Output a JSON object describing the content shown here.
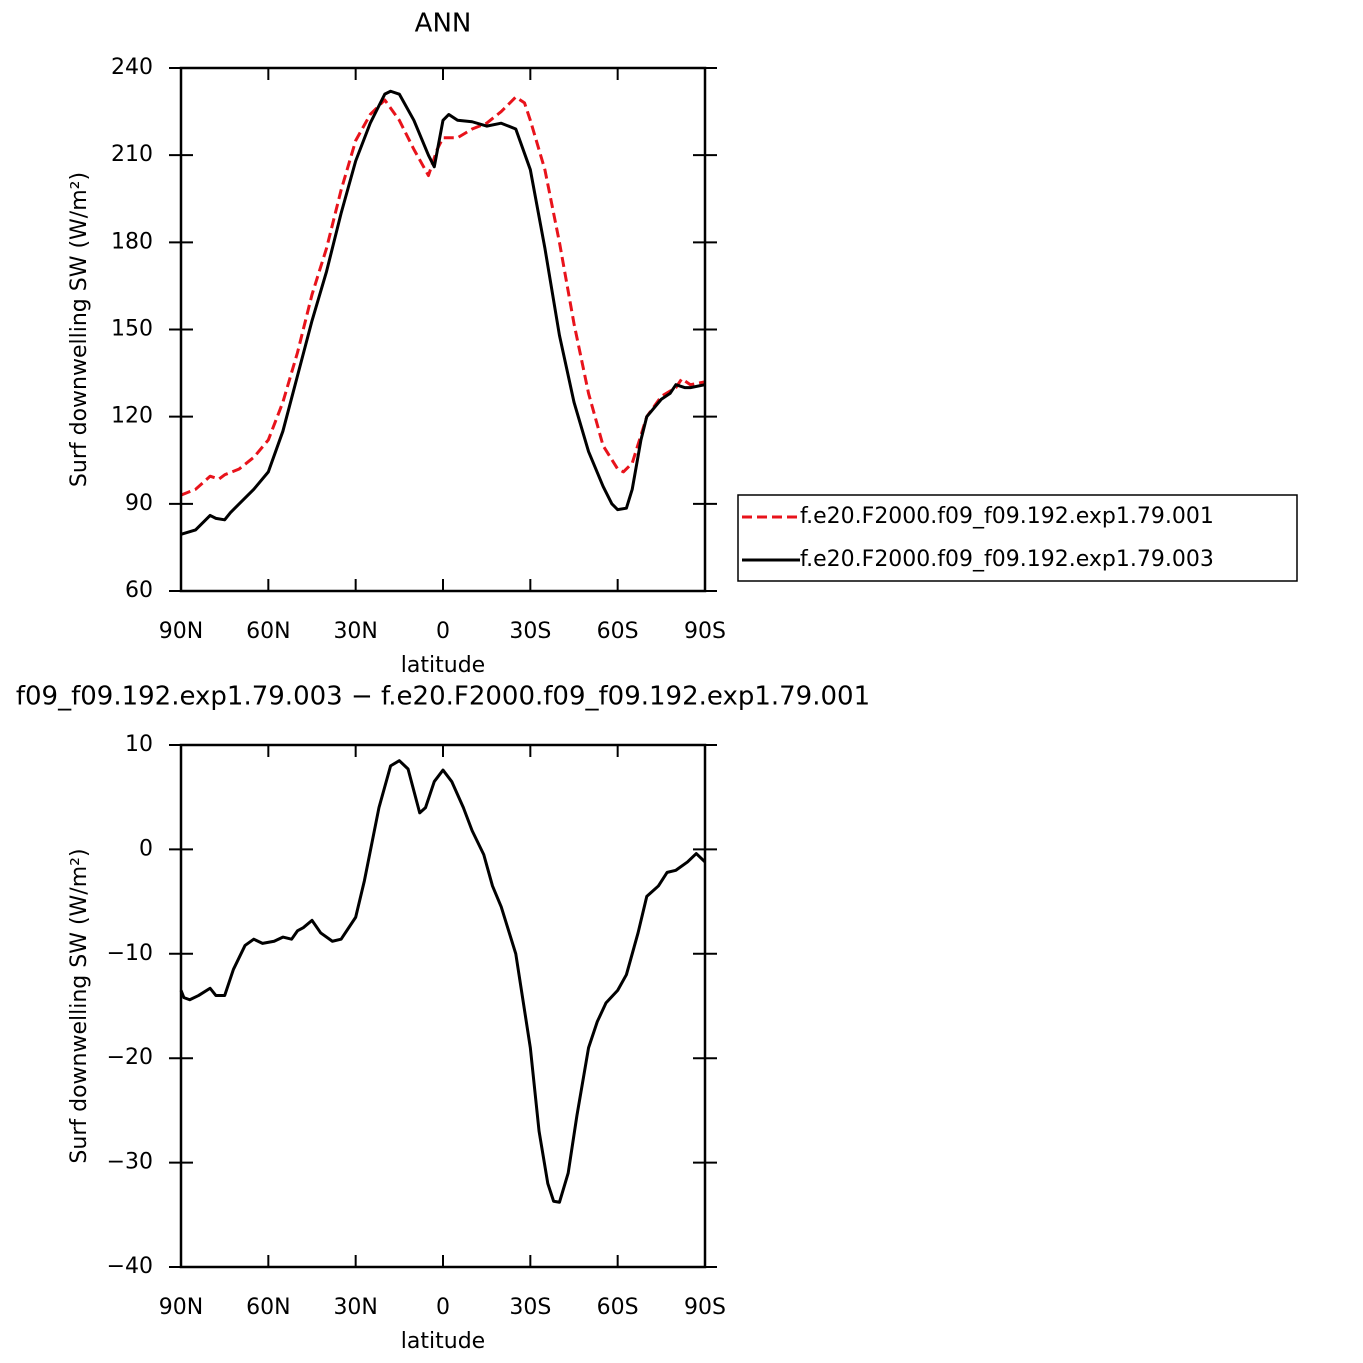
{
  "chart_data": [
    {
      "type": "line",
      "title": "ANN",
      "xlabel": "latitude",
      "ylabel": "Surf downwelling SW (W/m²)",
      "xlim": [
        90,
        -90
      ],
      "ylim": [
        60,
        240
      ],
      "xticks": [
        {
          "value": 90,
          "label": "90N"
        },
        {
          "value": 60,
          "label": "60N"
        },
        {
          "value": 30,
          "label": "30N"
        },
        0,
        {
          "value": -30,
          "label": "30S"
        },
        {
          "value": -60,
          "label": "60S"
        },
        {
          "value": -90,
          "label": "90S"
        }
      ],
      "yticks": [
        60,
        90,
        120,
        150,
        180,
        210,
        240
      ],
      "legend": "right",
      "series": [
        {
          "name": "f.e20.F2000.f09_f09.192.exp1.79.001",
          "color": "#e8131b",
          "dash": true,
          "x": [
            90,
            85,
            80,
            77,
            75,
            70,
            65,
            60,
            55,
            50,
            45,
            40,
            35,
            30,
            25,
            20,
            15,
            10,
            5,
            2,
            0,
            -5,
            -10,
            -15,
            -20,
            -25,
            -28,
            -30,
            -35,
            -40,
            -45,
            -50,
            -55,
            -60,
            -62,
            -65,
            -70,
            -75,
            -80,
            -82,
            -85,
            -90
          ],
          "values": [
            93,
            95,
            99.5,
            98.5,
            100,
            102,
            106,
            112,
            125,
            142,
            162,
            178,
            198,
            215,
            224,
            229,
            222,
            212,
            203,
            212,
            216,
            216,
            219,
            221,
            225,
            230,
            228,
            222,
            205,
            180,
            152,
            128,
            110,
            102,
            101,
            104,
            120,
            127,
            130,
            133,
            131,
            132
          ]
        },
        {
          "name": "f.e20.F2000.f09_f09.192.exp1.79.003",
          "color": "#000000",
          "dash": false,
          "x": [
            90,
            85,
            80,
            78,
            75,
            73,
            70,
            65,
            60,
            55,
            50,
            45,
            40,
            35,
            30,
            25,
            20,
            18,
            15,
            10,
            5,
            3,
            0,
            -2,
            -5,
            -10,
            -15,
            -20,
            -25,
            -30,
            -35,
            -40,
            -45,
            -50,
            -55,
            -58,
            -60,
            -63,
            -65,
            -68,
            -70,
            -75,
            -78,
            -80,
            -83,
            -85,
            -90
          ],
          "values": [
            79.5,
            81,
            86,
            85,
            84.5,
            87,
            90,
            95,
            101,
            115,
            134,
            153,
            170,
            190,
            208,
            221,
            231,
            232,
            231,
            222,
            210,
            206,
            222,
            224,
            222,
            221.5,
            220,
            221,
            219,
            205,
            178,
            148,
            125,
            108,
            96,
            90,
            88,
            88.5,
            95,
            112,
            120,
            126,
            128,
            131,
            130,
            130,
            131
          ]
        }
      ]
    },
    {
      "type": "line",
      "title": "f09_f09.192.exp1.79.003 − f.e20.F2000.f09_f09.192.exp1.79.001",
      "xlabel": "latitude",
      "ylabel": "Surf downwelling SW (W/m²)",
      "xlim": [
        90,
        -90
      ],
      "ylim": [
        -40,
        10
      ],
      "xticks": [
        {
          "value": 90,
          "label": "90N"
        },
        {
          "value": 60,
          "label": "60N"
        },
        {
          "value": 30,
          "label": "30N"
        },
        0,
        {
          "value": -30,
          "label": "30S"
        },
        {
          "value": -60,
          "label": "60S"
        },
        {
          "value": -90,
          "label": "90S"
        }
      ],
      "yticks": [
        {
          "value": -40,
          "label": "−40"
        },
        {
          "value": -30,
          "label": "−30"
        },
        {
          "value": -20,
          "label": "−20"
        },
        {
          "value": -10,
          "label": "−10"
        },
        0,
        10
      ],
      "color": "#000000",
      "x": [
        90,
        89,
        87,
        84,
        80,
        78,
        75,
        72,
        68,
        65,
        62,
        58,
        55,
        52,
        50,
        48,
        45,
        42,
        38,
        35,
        30,
        27,
        22,
        18,
        15,
        12,
        8,
        6,
        3,
        0,
        -3,
        -7,
        -10,
        -14,
        -17,
        -20,
        -25,
        -30,
        -33,
        -36,
        -38,
        -40,
        -43,
        -46,
        -50,
        -53,
        -56,
        -60,
        -63,
        -67,
        -70,
        -74,
        -77,
        -80,
        -84,
        -87,
        -90
      ],
      "values": [
        -13.5,
        -14.2,
        -14.4,
        -14,
        -13.3,
        -14,
        -14,
        -11.5,
        -9.2,
        -8.6,
        -9,
        -8.8,
        -8.4,
        -8.6,
        -7.8,
        -7.5,
        -6.8,
        -8,
        -8.8,
        -8.6,
        -6.5,
        -3,
        4,
        8,
        8.5,
        7.7,
        3.5,
        4,
        6.5,
        7.6,
        6.5,
        4,
        1.8,
        -0.5,
        -3.5,
        -5.5,
        -10,
        -19,
        -27,
        -32,
        -33.7,
        -33.8,
        -31,
        -25.5,
        -19,
        -16.5,
        -14.7,
        -13.5,
        -12,
        -8,
        -4.5,
        -3.5,
        -2.2,
        -2,
        -1.2,
        -0.4,
        -1.2
      ]
    }
  ]
}
